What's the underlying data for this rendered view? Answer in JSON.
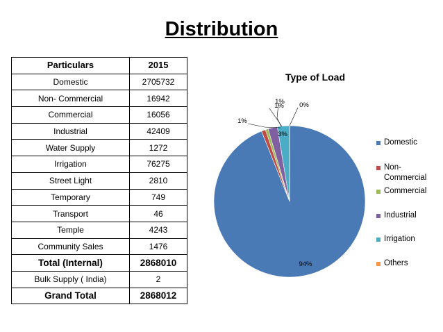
{
  "title": "Distribution",
  "table": {
    "headers": [
      "Particulars",
      "2015"
    ],
    "rows": [
      {
        "label": "Domestic",
        "value": "2705732"
      },
      {
        "label": "Non- Commercial",
        "value": "16942"
      },
      {
        "label": "Commercial",
        "value": "16056"
      },
      {
        "label": "Industrial",
        "value": "42409"
      },
      {
        "label": "Water Supply",
        "value": "1272"
      },
      {
        "label": "Irrigation",
        "value": "76275"
      },
      {
        "label": "Street Light",
        "value": "2810"
      },
      {
        "label": "Temporary",
        "value": "749"
      },
      {
        "label": "Transport",
        "value": "46"
      },
      {
        "label": "Temple",
        "value": "4243"
      },
      {
        "label": "Community Sales",
        "value": "1476"
      },
      {
        "label": "Total (Internal)",
        "value": "2868010",
        "bold": true
      },
      {
        "label": "Bulk Supply ( India)",
        "value": "2"
      },
      {
        "label": "Grand Total",
        "value": "2868012",
        "bold": true
      }
    ]
  },
  "chart_data": {
    "type": "pie",
    "title": "Type of Load",
    "categories": [
      "Domestic",
      "Non- Commercial",
      "Commercial",
      "Industrial",
      "Irrigation",
      "Others"
    ],
    "values": [
      94,
      1,
      1,
      1,
      3,
      0
    ],
    "labels": [
      "94%",
      "1%",
      "1%",
      "1%",
      "3%",
      "0%"
    ],
    "legend_position": "right",
    "colors": [
      "#4a7ab5",
      "#bf4b47",
      "#9bbb59",
      "#7f5fa0",
      "#4bacc6",
      "#f79646"
    ]
  }
}
